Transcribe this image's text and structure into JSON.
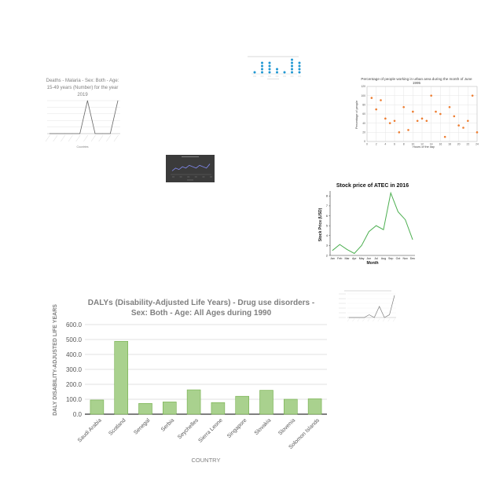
{
  "colors": {
    "background": "#ffffff",
    "bar_fill": "#a9d18e",
    "bar_stroke": "#70ad47",
    "scatter_point": "#ed7d31",
    "stock_line": "#4caf50",
    "dot_blue": "#1f97d3",
    "mini_dark_bg": "#3b3b3b",
    "mini_line": "#7f86e8"
  },
  "chart_data": [
    {
      "id": "malaria",
      "type": "line",
      "title": "Deaths - Malaria - Sex: Both - Age: 15-49 years (Number) for the year 2019",
      "xlabel": "Countries",
      "ylabel": "",
      "categories": [
        "",
        "",
        "",
        "",
        "",
        "",
        "",
        "",
        "",
        ""
      ],
      "values": [
        0,
        0,
        0,
        0,
        0,
        100,
        0,
        0,
        0,
        100
      ],
      "ylim": [
        0,
        100
      ],
      "grid": true
    },
    {
      "id": "dots",
      "type": "scatter",
      "title": "",
      "values": [
        1,
        4,
        4,
        2,
        1,
        5,
        4
      ],
      "grid": false
    },
    {
      "id": "urban",
      "type": "scatter",
      "title": "Percentage of people working in urban area during the month of June 1995",
      "xlabel": "Hours of the day",
      "ylabel": "Percentage of people",
      "x_ticks": [
        "0",
        "2",
        "4",
        "6",
        "8",
        "10",
        "12",
        "14",
        "16",
        "18",
        "20",
        "22",
        "24"
      ],
      "y_ticks": [
        "0",
        "20",
        "40",
        "60",
        "80",
        "100",
        "120"
      ],
      "x": [
        1,
        2,
        3,
        4,
        5,
        6,
        7,
        8,
        9,
        10,
        11,
        12,
        13,
        14,
        15,
        16,
        17,
        18,
        19,
        20,
        21,
        22,
        23,
        24
      ],
      "y": [
        95,
        70,
        90,
        50,
        40,
        45,
        20,
        75,
        25,
        65,
        45,
        50,
        45,
        100,
        65,
        60,
        10,
        75,
        55,
        35,
        30,
        45,
        100,
        20
      ],
      "xlim": [
        0,
        24
      ],
      "ylim": [
        0,
        120
      ],
      "grid": true
    },
    {
      "id": "dark",
      "type": "line",
      "title": "",
      "values": [
        10,
        12,
        11,
        13,
        12,
        14,
        13,
        12,
        14,
        13,
        12,
        15
      ],
      "grid": false
    },
    {
      "id": "stock",
      "type": "line",
      "title": "Stock price of ATEC in 2016",
      "xlabel": "Month",
      "ylabel": "Stock Price (USD)",
      "categories": [
        "Jan",
        "Feb",
        "Mar",
        "Apr",
        "May",
        "Jun",
        "Jul",
        "Aug",
        "Sep",
        "Oct",
        "Nov",
        "Dec"
      ],
      "values": [
        2.5,
        3.1,
        2.6,
        2.2,
        3.0,
        4.4,
        5.0,
        4.6,
        8.3,
        6.4,
        5.6,
        3.6
      ],
      "y_ticks": [
        "2",
        "3",
        "4",
        "5",
        "6",
        "7",
        "8"
      ],
      "ylim": [
        2,
        8.5
      ],
      "grid": false
    },
    {
      "id": "dalys",
      "type": "bar",
      "title": "DALYs (Disability-Adjusted Life Years) - Drug use disorders - Sex: Both - Age: All Ages during 1990",
      "xlabel": "COUNTRY",
      "ylabel": "DALY DISABILITY-ADJUSTED LIFE YEARS",
      "categories": [
        "Saudi Arabia",
        "Scotland",
        "Senegal",
        "Serbia",
        "Seychelles",
        "Sierra Leone",
        "Singapore",
        "Slovakia",
        "Slovenia",
        "Solomon Islands"
      ],
      "values": [
        95,
        488,
        72,
        82,
        163,
        78,
        120,
        160,
        100,
        103
      ],
      "y_ticks": [
        "0.0",
        "100.0",
        "200.0",
        "300.0",
        "400.0",
        "500.0",
        "600.0"
      ],
      "ylim": [
        0,
        600
      ],
      "grid": true
    },
    {
      "id": "tiny",
      "type": "line",
      "title": "",
      "values": [
        0,
        0,
        0,
        0,
        1,
        0,
        4,
        0,
        1,
        8
      ],
      "grid": true
    }
  ]
}
